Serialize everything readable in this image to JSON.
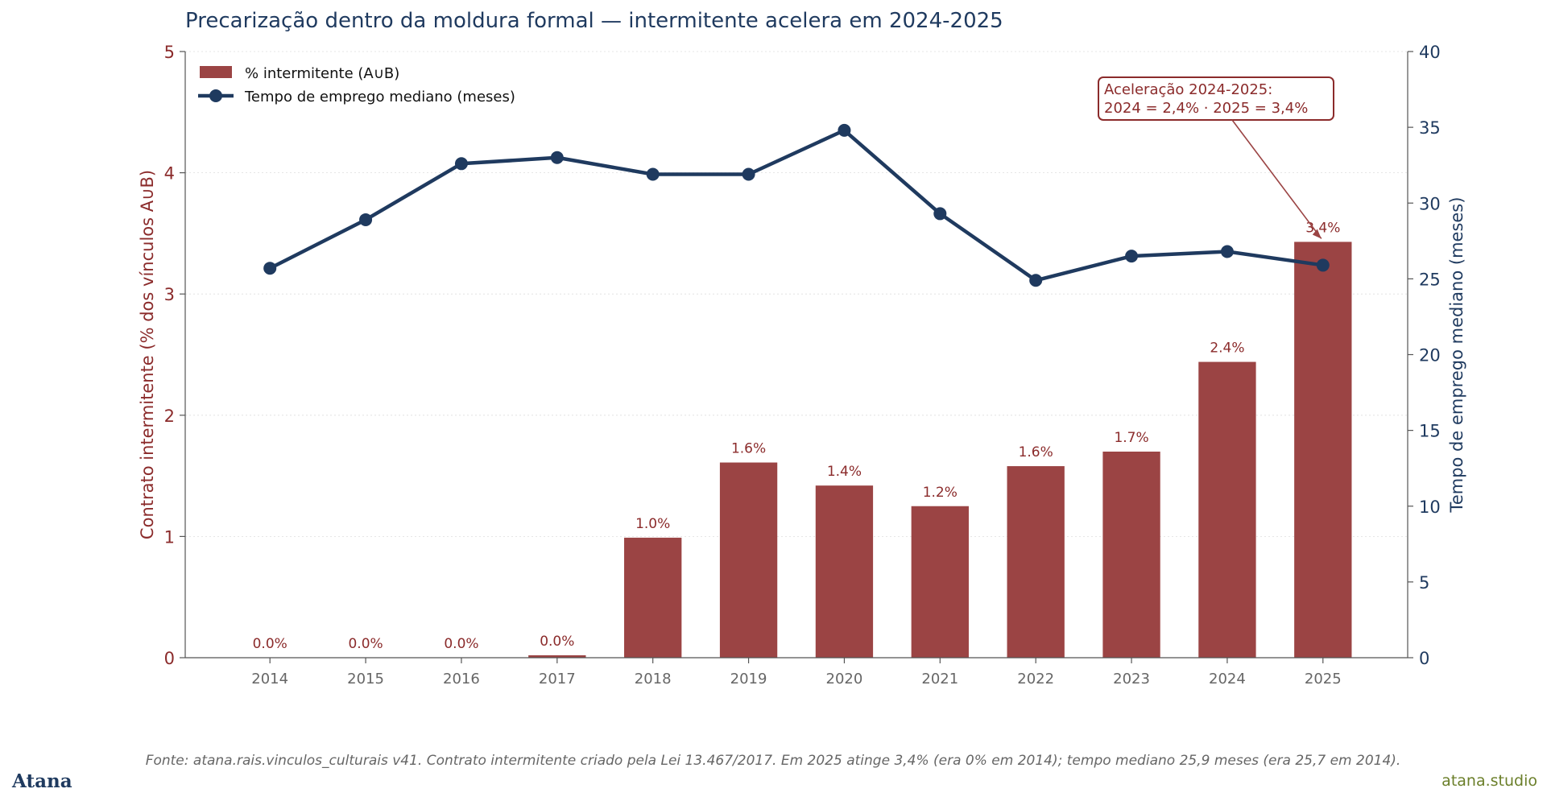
{
  "title": "Precarização dentro da moldura formal — intermitente acelera em 2024-2025",
  "footer": {
    "source": "Fonte: atana.rais.vinculos_culturais v41. Contrato intermitente criado pela Lei 13.467/2017. Em 2025 atinge 3,4% (era 0% em 2014); tempo mediano 25,9 meses (era 25,7 em 2014).",
    "brand": "Atana",
    "site": "atana.studio"
  },
  "colors": {
    "bar": "#9b4444",
    "line": "#1f3a5f",
    "left_axis": "#8b2b2b",
    "right_axis": "#1f3a5f",
    "title": "#1f3a5f",
    "annotation": "#8b2b2b"
  },
  "chart_data": {
    "type": "bar",
    "categories": [
      "2014",
      "2015",
      "2016",
      "2017",
      "2018",
      "2019",
      "2020",
      "2021",
      "2022",
      "2023",
      "2024",
      "2025"
    ],
    "series": [
      {
        "name": "% intermitente (A∪B)",
        "type": "bar",
        "axis": "left",
        "values": [
          0.0,
          0.0,
          0.0,
          0.02,
          0.99,
          1.61,
          1.42,
          1.25,
          1.58,
          1.7,
          2.44,
          3.43
        ],
        "labels": [
          "0.0%",
          "0.0%",
          "0.0%",
          "0.0%",
          "1.0%",
          "1.6%",
          "1.4%",
          "1.2%",
          "1.6%",
          "1.7%",
          "2.4%",
          "3.4%"
        ]
      },
      {
        "name": "Tempo de emprego mediano (meses)",
        "type": "line",
        "axis": "right",
        "values": [
          25.7,
          28.9,
          32.6,
          33.0,
          31.9,
          31.9,
          34.8,
          29.3,
          24.9,
          26.5,
          26.8,
          25.9
        ]
      }
    ],
    "ylabel": "Contrato intermitente (% dos vínculos A∪B)",
    "ylabel_right": "Tempo de emprego mediano (meses)",
    "ylim": [
      0,
      5
    ],
    "ylim_right": [
      0,
      40
    ],
    "yticks": [
      "0",
      "1",
      "2",
      "3",
      "4",
      "5"
    ],
    "yticks_right": [
      "0",
      "5",
      "10",
      "15",
      "20",
      "25",
      "30",
      "35",
      "40"
    ],
    "grid": true,
    "legend_position": "top-left",
    "annotation": {
      "lines": [
        "Aceleração 2024-2025:",
        "2024 = 2,4% · 2025 = 3,4%"
      ],
      "target_category": "2025"
    }
  }
}
